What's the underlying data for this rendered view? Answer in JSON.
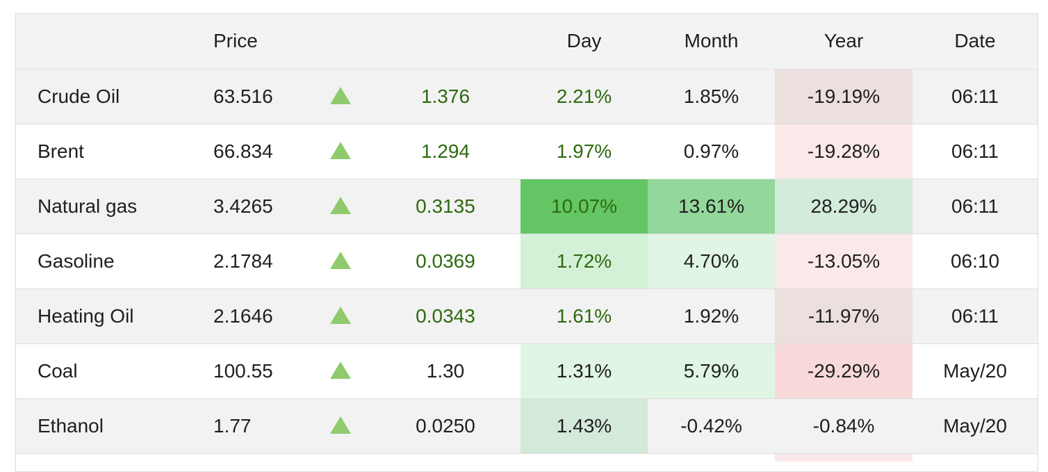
{
  "header": {
    "name": "",
    "price": "Price",
    "arrow": "",
    "change": "",
    "day": "Day",
    "month": "Month",
    "year": "Year",
    "date": "Date"
  },
  "rows": [
    {
      "name": "Crude Oil",
      "price": "63.516",
      "change": "1.376",
      "day": "2.21%",
      "month": "1.85%",
      "year": "-19.19%",
      "date": "06:11"
    },
    {
      "name": "Brent",
      "price": "66.834",
      "change": "1.294",
      "day": "1.97%",
      "month": "0.97%",
      "year": "-19.28%",
      "date": "06:11"
    },
    {
      "name": "Natural gas",
      "price": "3.4265",
      "change": "0.3135",
      "day": "10.07%",
      "month": "13.61%",
      "year": "28.29%",
      "date": "06:11"
    },
    {
      "name": "Gasoline",
      "price": "2.1784",
      "change": "0.0369",
      "day": "1.72%",
      "month": "4.70%",
      "year": "-13.05%",
      "date": "06:10"
    },
    {
      "name": "Heating Oil",
      "price": "2.1646",
      "change": "0.0343",
      "day": "1.61%",
      "month": "1.92%",
      "year": "-11.97%",
      "date": "06:11"
    },
    {
      "name": "Coal",
      "price": "100.55",
      "change": "1.30",
      "day": "1.31%",
      "month": "5.79%",
      "year": "-29.29%",
      "date": "May/20"
    },
    {
      "name": "Ethanol",
      "price": "1.77",
      "change": "0.0250",
      "day": "1.43%",
      "month": "-0.42%",
      "year": "-0.84%",
      "date": "May/20"
    }
  ],
  "cell_colors": {
    "crude_year": "#ece0df",
    "brent_year": "#fbe9e9",
    "natgas_day": "#63c563",
    "natgas_month": "#93d89a",
    "natgas_year": "#d3ebd9",
    "gasoline_day": "#d3f1d6",
    "gasoline_month": "#e0f5e3",
    "gasoline_year": "#fbe9e9",
    "heating_year": "#ece0df",
    "coal_day": "#e0f5e3",
    "coal_month": "#e0f5e3",
    "coal_year": "#f8d9d9",
    "ethanol_day": "#d3e9d9"
  },
  "icons": {
    "up": "up-triangle-icon",
    "up_color": "#8fcb6c",
    "change_text_color": "#2d6a0f"
  }
}
